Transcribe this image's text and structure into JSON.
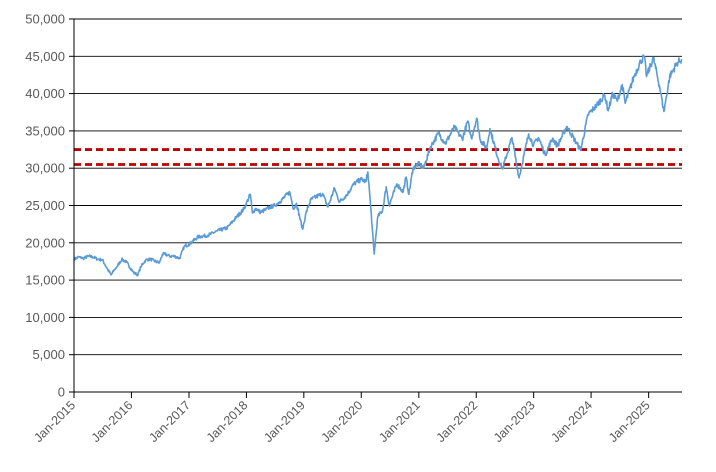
{
  "chart_data": {
    "type": "line",
    "title": "",
    "xlabel": "",
    "ylabel": "",
    "ylim": [
      0,
      50000
    ],
    "xlim": [
      "2015-01-01",
      "2025-08-01"
    ],
    "grid": true,
    "legend": "none",
    "y_ticks": [
      0,
      5000,
      10000,
      15000,
      20000,
      25000,
      30000,
      35000,
      40000,
      45000,
      50000
    ],
    "y_tick_labels": [
      "0",
      "5,000",
      "10,000",
      "15,000",
      "20,000",
      "25,000",
      "30,000",
      "35,000",
      "40,000",
      "45,000",
      "50,000"
    ],
    "x_ticks": [
      "2015-01-01",
      "2016-01-01",
      "2017-01-01",
      "2018-01-01",
      "2019-01-01",
      "2020-01-01",
      "2021-01-01",
      "2022-01-01",
      "2023-01-01",
      "2024-01-01",
      "2025-01-01"
    ],
    "x_tick_labels": [
      "Jan-2015",
      "Jan-2016",
      "Jan-2017",
      "Jan-2018",
      "Jan-2019",
      "Jan-2020",
      "Jan-2021",
      "Jan-2022",
      "Jan-2023",
      "Jan-2024",
      "Jan-2025"
    ],
    "series": [
      {
        "color": "#5b9bd5",
        "points": [
          [
            "2015-01-01",
            17800
          ],
          [
            "2015-02-01",
            18100
          ],
          [
            "2015-03-01",
            17900
          ],
          [
            "2015-04-01",
            18200
          ],
          [
            "2015-05-01",
            18100
          ],
          [
            "2015-06-01",
            17800
          ],
          [
            "2015-07-01",
            17700
          ],
          [
            "2015-08-01",
            16500
          ],
          [
            "2015-08-25",
            15700
          ],
          [
            "2015-09-15",
            16400
          ],
          [
            "2015-10-01",
            16800
          ],
          [
            "2015-11-01",
            17800
          ],
          [
            "2015-12-01",
            17400
          ],
          [
            "2016-01-15",
            16000
          ],
          [
            "2016-02-11",
            15700
          ],
          [
            "2016-03-01",
            16800
          ],
          [
            "2016-04-01",
            17700
          ],
          [
            "2016-05-01",
            17800
          ],
          [
            "2016-06-27",
            17300
          ],
          [
            "2016-07-15",
            18400
          ],
          [
            "2016-08-01",
            18500
          ],
          [
            "2016-09-01",
            18200
          ],
          [
            "2016-10-01",
            18200
          ],
          [
            "2016-11-03",
            17900
          ],
          [
            "2016-12-01",
            19500
          ],
          [
            "2017-01-01",
            19800
          ],
          [
            "2017-03-01",
            20800
          ],
          [
            "2017-05-01",
            21000
          ],
          [
            "2017-07-01",
            21600
          ],
          [
            "2017-09-01",
            22000
          ],
          [
            "2017-11-01",
            23500
          ],
          [
            "2017-12-15",
            24500
          ],
          [
            "2018-01-26",
            26500
          ],
          [
            "2018-02-08",
            24000
          ],
          [
            "2018-03-01",
            24600
          ],
          [
            "2018-04-01",
            24100
          ],
          [
            "2018-05-01",
            24400
          ],
          [
            "2018-06-01",
            24800
          ],
          [
            "2018-07-01",
            25000
          ],
          [
            "2018-08-01",
            25500
          ],
          [
            "2018-10-03",
            26800
          ],
          [
            "2018-10-29",
            24500
          ],
          [
            "2018-11-15",
            25300
          ],
          [
            "2018-12-24",
            21800
          ],
          [
            "2019-01-15",
            24000
          ],
          [
            "2019-02-15",
            25800
          ],
          [
            "2019-04-30",
            26600
          ],
          [
            "2019-06-03",
            24800
          ],
          [
            "2019-07-15",
            27300
          ],
          [
            "2019-08-15",
            25500
          ],
          [
            "2019-10-01",
            26400
          ],
          [
            "2019-11-15",
            27900
          ],
          [
            "2019-12-31",
            28500
          ],
          [
            "2020-01-31",
            28200
          ],
          [
            "2020-02-12",
            29500
          ],
          [
            "2020-02-28",
            25400
          ],
          [
            "2020-03-23",
            18500
          ],
          [
            "2020-04-15",
            23500
          ],
          [
            "2020-05-15",
            24300
          ],
          [
            "2020-06-08",
            27500
          ],
          [
            "2020-06-26",
            25000
          ],
          [
            "2020-08-15",
            27900
          ],
          [
            "2020-09-23",
            26800
          ],
          [
            "2020-10-12",
            28800
          ],
          [
            "2020-10-30",
            26500
          ],
          [
            "2020-11-25",
            30000
          ],
          [
            "2020-12-31",
            30600
          ],
          [
            "2021-02-01",
            30000
          ],
          [
            "2021-03-15",
            32800
          ],
          [
            "2021-05-07",
            34700
          ],
          [
            "2021-06-18",
            33300
          ],
          [
            "2021-08-15",
            35500
          ],
          [
            "2021-10-04",
            33900
          ],
          [
            "2021-11-08",
            36300
          ],
          [
            "2021-12-01",
            34000
          ],
          [
            "2022-01-04",
            36700
          ],
          [
            "2022-01-27",
            33800
          ],
          [
            "2022-03-08",
            32700
          ],
          [
            "2022-03-29",
            35300
          ],
          [
            "2022-05-20",
            31300
          ],
          [
            "2022-06-17",
            29900
          ],
          [
            "2022-08-16",
            34100
          ],
          [
            "2022-09-30",
            28700
          ],
          [
            "2022-11-30",
            34600
          ],
          [
            "2022-12-31",
            33100
          ],
          [
            "2023-02-01",
            34100
          ],
          [
            "2023-03-15",
            31800
          ],
          [
            "2023-05-01",
            34000
          ],
          [
            "2023-06-01",
            33000
          ],
          [
            "2023-07-31",
            35600
          ],
          [
            "2023-10-27",
            32400
          ],
          [
            "2023-12-13",
            37200
          ],
          [
            "2024-01-31",
            38300
          ],
          [
            "2024-03-28",
            39800
          ],
          [
            "2024-04-19",
            37700
          ],
          [
            "2024-05-17",
            40000
          ],
          [
            "2024-06-15",
            39000
          ],
          [
            "2024-07-17",
            41200
          ],
          [
            "2024-08-05",
            38700
          ],
          [
            "2024-09-30",
            42300
          ],
          [
            "2024-11-11",
            44300
          ],
          [
            "2024-12-04",
            45000
          ],
          [
            "2024-12-19",
            42300
          ],
          [
            "2025-01-31",
            44800
          ],
          [
            "2025-03-13",
            40800
          ],
          [
            "2025-04-08",
            37600
          ],
          [
            "2025-05-15",
            42300
          ],
          [
            "2025-06-30",
            44100
          ],
          [
            "2025-07-31",
            44600
          ]
        ]
      }
    ],
    "reference_lines": [
      {
        "y": 32500,
        "color": "#c00000",
        "style": "dashed"
      },
      {
        "y": 30500,
        "color": "#c00000",
        "style": "dashed"
      }
    ]
  }
}
